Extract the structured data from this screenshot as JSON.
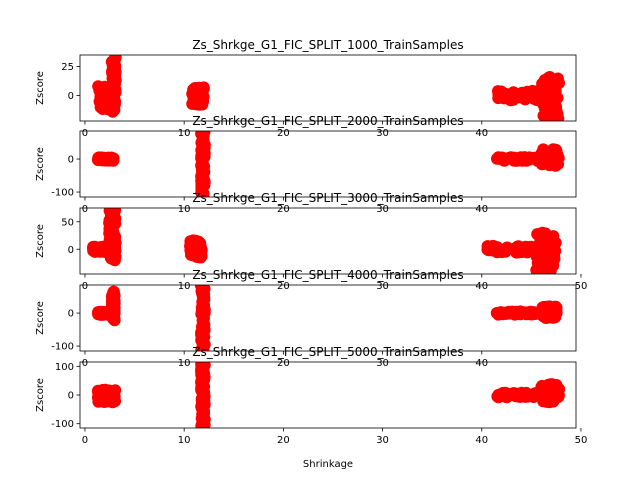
{
  "chart_data": [
    {
      "type": "scatter",
      "title": "Zs_Shrkge_G1_FIC_SPLIT_1000_TrainSamples",
      "xlabel": "",
      "ylabel": "Zscore",
      "xlim": [
        -0.5,
        49.5
      ],
      "ylim": [
        -22,
        35
      ],
      "xticks": [
        0,
        10,
        20,
        30,
        40
      ],
      "yticks": [
        0,
        25
      ],
      "color": "#ff0000",
      "clusters": [
        {
          "x_min": 1.3,
          "x_max": 2.9,
          "y_min": -12,
          "y_max": 8
        },
        {
          "x_min": 2.7,
          "x_max": 3.1,
          "y_min": -14,
          "y_max": 33
        },
        {
          "x_min": 10.8,
          "x_max": 12.0,
          "y_min": -8,
          "y_max": 7
        },
        {
          "x_min": 41.5,
          "x_max": 47.0,
          "y_min": -4,
          "y_max": 4
        },
        {
          "x_min": 46.0,
          "x_max": 47.8,
          "y_min": -22,
          "y_max": 16
        }
      ]
    },
    {
      "type": "scatter",
      "title": "Zs_Shrkge_G1_FIC_SPLIT_2000_TrainSamples",
      "xlabel": "",
      "ylabel": "Zscore",
      "xlim": [
        -0.5,
        49.5
      ],
      "ylim": [
        -115,
        85
      ],
      "xticks": [
        0,
        10,
        20,
        30,
        40
      ],
      "yticks": [
        -100,
        0
      ],
      "color": "#ff0000",
      "clusters": [
        {
          "x_min": 1.3,
          "x_max": 2.9,
          "y_min": -5,
          "y_max": 5
        },
        {
          "x_min": 11.7,
          "x_max": 12.1,
          "y_min": -112,
          "y_max": 83
        },
        {
          "x_min": 41.5,
          "x_max": 47.0,
          "y_min": -6,
          "y_max": 6
        },
        {
          "x_min": 46.0,
          "x_max": 47.8,
          "y_min": -20,
          "y_max": 30
        }
      ]
    },
    {
      "type": "scatter",
      "title": "Zs_Shrkge_G1_FIC_SPLIT_3000_TrainSamples",
      "xlabel": "",
      "ylabel": "Zscore",
      "xlim": [
        -0.5,
        49.5
      ],
      "ylim": [
        -45,
        75
      ],
      "xticks": [
        0,
        10,
        20,
        30,
        40,
        50
      ],
      "yticks": [
        0,
        50
      ],
      "color": "#ff0000",
      "clusters": [
        {
          "x_min": 0.8,
          "x_max": 2.4,
          "y_min": -5,
          "y_max": 5
        },
        {
          "x_min": 2.4,
          "x_max": 3.1,
          "y_min": -20,
          "y_max": 73
        },
        {
          "x_min": 10.6,
          "x_max": 11.8,
          "y_min": -15,
          "y_max": 16
        },
        {
          "x_min": 40.5,
          "x_max": 46.5,
          "y_min": -6,
          "y_max": 6
        },
        {
          "x_min": 45.5,
          "x_max": 47.5,
          "y_min": -42,
          "y_max": 30
        }
      ]
    },
    {
      "type": "scatter",
      "title": "Zs_Shrkge_G1_FIC_SPLIT_4000_TrainSamples",
      "xlabel": "",
      "ylabel": "Zscore",
      "xlim": [
        -0.5,
        49.5
      ],
      "ylim": [
        -115,
        85
      ],
      "xticks": [
        0,
        10,
        20,
        30,
        40
      ],
      "yticks": [
        -100,
        0
      ],
      "color": "#ff0000",
      "clusters": [
        {
          "x_min": 1.3,
          "x_max": 2.8,
          "y_min": -6,
          "y_max": 4
        },
        {
          "x_min": 2.7,
          "x_max": 3.0,
          "y_min": -22,
          "y_max": 65
        },
        {
          "x_min": 11.7,
          "x_max": 12.1,
          "y_min": -112,
          "y_max": 83
        },
        {
          "x_min": 41.5,
          "x_max": 47.0,
          "y_min": -5,
          "y_max": 5
        },
        {
          "x_min": 46.0,
          "x_max": 47.6,
          "y_min": -15,
          "y_max": 20
        }
      ]
    },
    {
      "type": "scatter",
      "title": "Zs_Shrkge_G1_FIC_SPLIT_5000_TrainSamples",
      "xlabel": "Shrinkage",
      "ylabel": "Zscore",
      "xlim": [
        -0.5,
        49.5
      ],
      "ylim": [
        -115,
        115
      ],
      "xticks": [
        0,
        10,
        20,
        30,
        40,
        50
      ],
      "yticks": [
        -100,
        0,
        100
      ],
      "color": "#ff0000",
      "clusters": [
        {
          "x_min": 1.3,
          "x_max": 3.1,
          "y_min": -25,
          "y_max": 18
        },
        {
          "x_min": 11.7,
          "x_max": 12.1,
          "y_min": -112,
          "y_max": 112
        },
        {
          "x_min": 41.5,
          "x_max": 47.0,
          "y_min": -8,
          "y_max": 8
        },
        {
          "x_min": 46.0,
          "x_max": 47.8,
          "y_min": -25,
          "y_max": 38
        }
      ]
    }
  ]
}
